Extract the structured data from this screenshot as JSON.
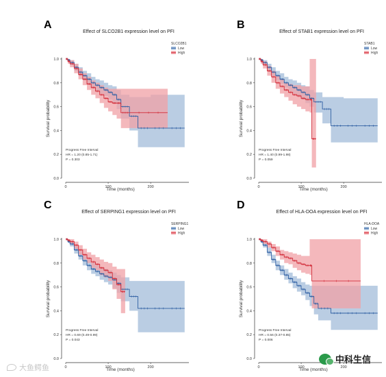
{
  "figure": {
    "panels": [
      {
        "letter": "A",
        "chart_data": {
          "type": "line",
          "subtype": "kaplan-meier",
          "title": "Effect of SLCO2B1 expression level on PFI",
          "xlabel": "Time (months)",
          "ylabel": "Survival probability",
          "xlim": [
            0,
            290
          ],
          "ylim": [
            0,
            1.0
          ],
          "xticks": [
            "0",
            "100",
            "200"
          ],
          "yticks": [
            "0.0",
            "0.2",
            "0.4",
            "0.6",
            "0.8",
            "1.0"
          ],
          "legend": {
            "title": "SLCO2B1",
            "placement": "top-right"
          },
          "series": [
            {
              "name": "Low",
              "color": "#2f5fa3",
              "band": "#a3bcd9",
              "x": [
                0,
                5,
                10,
                20,
                30,
                40,
                50,
                60,
                70,
                80,
                90,
                100,
                110,
                120,
                130,
                150,
                170,
                200,
                240,
                280
              ],
              "y": [
                1.0,
                0.99,
                0.97,
                0.93,
                0.89,
                0.86,
                0.83,
                0.8,
                0.78,
                0.76,
                0.74,
                0.72,
                0.7,
                0.66,
                0.6,
                0.52,
                0.42,
                0.42,
                0.42,
                0.42
              ],
              "lower": [
                1.0,
                0.98,
                0.95,
                0.9,
                0.86,
                0.82,
                0.79,
                0.76,
                0.73,
                0.71,
                0.69,
                0.66,
                0.63,
                0.58,
                0.5,
                0.4,
                0.26,
                0.26,
                0.26,
                0.26
              ],
              "upper": [
                1.0,
                1.0,
                0.99,
                0.96,
                0.93,
                0.9,
                0.88,
                0.85,
                0.83,
                0.82,
                0.8,
                0.78,
                0.77,
                0.74,
                0.7,
                0.68,
                0.68,
                0.7,
                0.7,
                0.7
              ]
            },
            {
              "name": "High",
              "color": "#d22d3a",
              "band": "#f0a0a5",
              "x": [
                0,
                5,
                10,
                20,
                30,
                40,
                50,
                60,
                70,
                80,
                90,
                100,
                110,
                120,
                130,
                150,
                240
              ],
              "y": [
                1.0,
                0.98,
                0.96,
                0.92,
                0.87,
                0.83,
                0.79,
                0.76,
                0.73,
                0.7,
                0.67,
                0.64,
                0.63,
                0.63,
                0.55,
                0.55,
                0.55
              ],
              "lower": [
                1.0,
                0.96,
                0.93,
                0.88,
                0.83,
                0.78,
                0.74,
                0.7,
                0.67,
                0.63,
                0.59,
                0.56,
                0.53,
                0.5,
                0.42,
                0.42,
                0.42
              ],
              "upper": [
                1.0,
                1.0,
                0.99,
                0.96,
                0.92,
                0.88,
                0.85,
                0.82,
                0.8,
                0.78,
                0.76,
                0.75,
                0.75,
                0.75,
                0.75,
                0.75,
                0.75
              ]
            }
          ],
          "annotations": [
            "Progress Free Interval",
            "HR = 1.20 (0.85-1.71)",
            "P = 0.303"
          ]
        }
      },
      {
        "letter": "B",
        "chart_data": {
          "type": "line",
          "subtype": "kaplan-meier",
          "title": "Effect of STAB1 expression level on PFI",
          "xlabel": "Time (months)",
          "ylabel": "Survival probability",
          "xlim": [
            0,
            290
          ],
          "ylim": [
            0,
            1.0
          ],
          "xticks": [
            "0",
            "100",
            "200"
          ],
          "yticks": [
            "0.0",
            "0.2",
            "0.4",
            "0.6",
            "0.8",
            "1.0"
          ],
          "legend": {
            "title": "STAB1",
            "placement": "top-right"
          },
          "series": [
            {
              "name": "Low",
              "color": "#2f5fa3",
              "band": "#a3bcd9",
              "x": [
                0,
                5,
                10,
                20,
                30,
                40,
                50,
                60,
                70,
                80,
                90,
                100,
                110,
                120,
                130,
                150,
                170,
                200,
                240,
                280
              ],
              "y": [
                1.0,
                0.99,
                0.97,
                0.93,
                0.89,
                0.86,
                0.83,
                0.8,
                0.78,
                0.76,
                0.74,
                0.72,
                0.7,
                0.67,
                0.64,
                0.58,
                0.44,
                0.44,
                0.44,
                0.44
              ],
              "lower": [
                1.0,
                0.98,
                0.95,
                0.9,
                0.86,
                0.82,
                0.79,
                0.76,
                0.73,
                0.71,
                0.69,
                0.66,
                0.63,
                0.6,
                0.55,
                0.46,
                0.3,
                0.3,
                0.3,
                0.3
              ],
              "upper": [
                1.0,
                1.0,
                0.99,
                0.96,
                0.93,
                0.9,
                0.88,
                0.85,
                0.83,
                0.82,
                0.8,
                0.78,
                0.77,
                0.74,
                0.72,
                0.68,
                0.68,
                0.67,
                0.67,
                0.67
              ]
            },
            {
              "name": "High",
              "color": "#d22d3a",
              "band": "#f0a0a5",
              "x": [
                0,
                5,
                10,
                20,
                30,
                40,
                50,
                60,
                70,
                80,
                90,
                100,
                110,
                120,
                125,
                135
              ],
              "y": [
                1.0,
                0.98,
                0.95,
                0.9,
                0.85,
                0.8,
                0.77,
                0.74,
                0.72,
                0.7,
                0.69,
                0.67,
                0.66,
                0.66,
                0.33,
                0.33
              ],
              "lower": [
                1.0,
                0.96,
                0.92,
                0.86,
                0.8,
                0.75,
                0.71,
                0.68,
                0.65,
                0.62,
                0.6,
                0.58,
                0.56,
                0.55,
                0.09,
                0.09
              ],
              "upper": [
                1.0,
                1.0,
                0.98,
                0.94,
                0.9,
                0.86,
                0.83,
                0.8,
                0.79,
                0.78,
                0.78,
                0.77,
                0.77,
                1.0,
                1.0,
                1.0
              ]
            }
          ],
          "annotations": [
            "Progress Free Interval",
            "HR = 1.40 (0.99-1.98)",
            "P = 0.059"
          ]
        }
      },
      {
        "letter": "C",
        "chart_data": {
          "type": "line",
          "subtype": "kaplan-meier",
          "title": "Effect of SERPING1 expression level on PFI",
          "xlabel": "Time (months)",
          "ylabel": "Survival probability",
          "xlim": [
            0,
            290
          ],
          "ylim": [
            0,
            1.0
          ],
          "xticks": [
            "0",
            "100",
            "200"
          ],
          "yticks": [
            "0.0",
            "0.2",
            "0.4",
            "0.6",
            "0.8",
            "1.0"
          ],
          "legend": {
            "title": "SERPING1",
            "placement": "top-right"
          },
          "series": [
            {
              "name": "Low",
              "color": "#2f5fa3",
              "band": "#a3bcd9",
              "x": [
                0,
                5,
                10,
                20,
                30,
                40,
                50,
                60,
                70,
                80,
                90,
                100,
                110,
                120,
                130,
                150,
                170,
                200,
                240,
                280
              ],
              "y": [
                1.0,
                0.98,
                0.96,
                0.91,
                0.86,
                0.82,
                0.78,
                0.75,
                0.73,
                0.71,
                0.69,
                0.68,
                0.66,
                0.63,
                0.58,
                0.52,
                0.42,
                0.42,
                0.42,
                0.42
              ],
              "lower": [
                1.0,
                0.97,
                0.94,
                0.88,
                0.83,
                0.78,
                0.74,
                0.71,
                0.69,
                0.66,
                0.64,
                0.62,
                0.59,
                0.55,
                0.48,
                0.4,
                0.22,
                0.22,
                0.22,
                0.22
              ],
              "upper": [
                1.0,
                1.0,
                0.98,
                0.94,
                0.9,
                0.86,
                0.83,
                0.8,
                0.78,
                0.76,
                0.75,
                0.74,
                0.72,
                0.7,
                0.68,
                0.65,
                0.65,
                0.65,
                0.65,
                0.65
              ]
            },
            {
              "name": "High",
              "color": "#d22d3a",
              "band": "#f0a0a5",
              "x": [
                0,
                5,
                10,
                20,
                30,
                40,
                50,
                60,
                70,
                80,
                90,
                100,
                110,
                120,
                130,
                140
              ],
              "y": [
                1.0,
                0.99,
                0.98,
                0.95,
                0.91,
                0.87,
                0.84,
                0.81,
                0.79,
                0.76,
                0.74,
                0.72,
                0.67,
                0.62,
                0.56,
                0.56
              ],
              "lower": [
                1.0,
                0.98,
                0.96,
                0.92,
                0.87,
                0.83,
                0.8,
                0.76,
                0.74,
                0.7,
                0.68,
                0.65,
                0.58,
                0.5,
                0.38,
                0.38
              ],
              "upper": [
                1.0,
                1.0,
                1.0,
                0.98,
                0.95,
                0.92,
                0.89,
                0.87,
                0.85,
                0.83,
                0.81,
                0.8,
                0.77,
                0.75,
                0.75,
                0.75
              ]
            }
          ],
          "annotations": [
            "Progress Free Interval",
            "HR = 0.69 (0.49-0.99)",
            "P = 0.043"
          ]
        }
      },
      {
        "letter": "D",
        "chart_data": {
          "type": "line",
          "subtype": "kaplan-meier",
          "title": "Effect of HLA-DOA expression level on PFI",
          "xlabel": "Time (months)",
          "ylabel": "Survival probability",
          "xlim": [
            0,
            290
          ],
          "ylim": [
            0,
            1.0
          ],
          "xticks": [
            "0",
            "100",
            "200"
          ],
          "yticks": [
            "0.0",
            "0.2",
            "0.4",
            "0.6",
            "0.8",
            "1.0"
          ],
          "legend": {
            "title": "HLA-DOA",
            "placement": "top-right"
          },
          "series": [
            {
              "name": "Low",
              "color": "#2f5fa3",
              "band": "#a3bcd9",
              "x": [
                0,
                5,
                10,
                20,
                30,
                40,
                50,
                60,
                70,
                80,
                90,
                100,
                110,
                120,
                130,
                140,
                170,
                200,
                240,
                280
              ],
              "y": [
                1.0,
                0.98,
                0.95,
                0.89,
                0.83,
                0.78,
                0.74,
                0.7,
                0.67,
                0.64,
                0.61,
                0.58,
                0.55,
                0.52,
                0.46,
                0.42,
                0.38,
                0.38,
                0.38,
                0.38
              ],
              "lower": [
                1.0,
                0.97,
                0.93,
                0.86,
                0.8,
                0.74,
                0.7,
                0.66,
                0.63,
                0.59,
                0.56,
                0.53,
                0.49,
                0.44,
                0.37,
                0.32,
                0.24,
                0.24,
                0.24,
                0.24
              ],
              "upper": [
                1.0,
                1.0,
                0.98,
                0.93,
                0.87,
                0.82,
                0.78,
                0.75,
                0.72,
                0.69,
                0.67,
                0.64,
                0.62,
                0.61,
                0.61,
                0.61,
                0.61,
                0.61,
                0.61,
                0.61
              ]
            },
            {
              "name": "High",
              "color": "#d22d3a",
              "band": "#f0a0a5",
              "x": [
                0,
                5,
                10,
                20,
                30,
                40,
                50,
                60,
                70,
                80,
                90,
                100,
                110,
                120,
                125,
                240
              ],
              "y": [
                1.0,
                0.99,
                0.98,
                0.96,
                0.93,
                0.9,
                0.87,
                0.85,
                0.84,
                0.82,
                0.8,
                0.79,
                0.78,
                0.78,
                0.65,
                0.65
              ],
              "lower": [
                1.0,
                0.98,
                0.96,
                0.93,
                0.9,
                0.86,
                0.83,
                0.8,
                0.79,
                0.76,
                0.74,
                0.72,
                0.71,
                0.7,
                0.42,
                0.42
              ],
              "upper": [
                1.0,
                1.0,
                1.0,
                0.98,
                0.96,
                0.94,
                0.91,
                0.9,
                0.89,
                0.88,
                0.87,
                0.86,
                0.86,
                1.0,
                1.0,
                1.0
              ]
            }
          ],
          "annotations": [
            "Progress Free Interval",
            "HR = 0.56 (0.37-0.85)",
            "P = 0.006"
          ]
        }
      }
    ]
  },
  "watermark": {
    "text": "大鱼鳄鱼"
  },
  "brand": {
    "text": "中科生信"
  }
}
